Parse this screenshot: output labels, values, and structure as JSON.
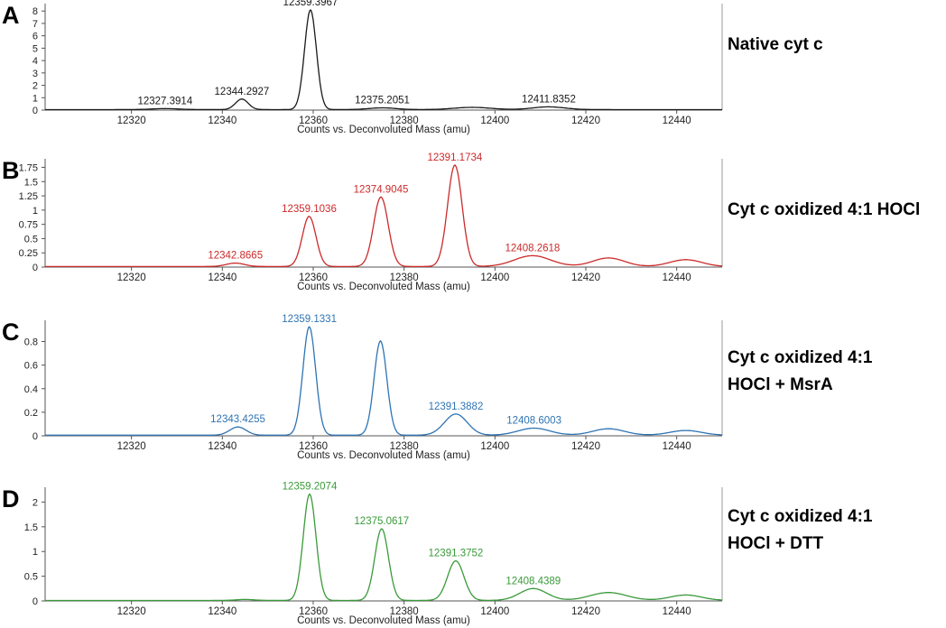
{
  "chart_data": [
    {
      "type": "line",
      "panel": "A",
      "caption": [
        "Native cyt c"
      ],
      "xlabel": "Counts vs. Deconvoluted Mass (amu)",
      "xlim": [
        12301,
        12450
      ],
      "ylim": [
        0,
        8.6
      ],
      "xticks": [
        12320,
        12340,
        12360,
        12380,
        12400,
        12420,
        12440
      ],
      "yticks": [
        0,
        1,
        2,
        3,
        4,
        5,
        6,
        7,
        8
      ],
      "color": "#1a1a1a",
      "baseline": 0.04,
      "peaks": [
        {
          "x": 12327.3914,
          "y": 0.08,
          "width": 3.0
        },
        {
          "x": 12344.2927,
          "y": 0.85,
          "width": 1.4
        },
        {
          "x": 12359.3967,
          "y": 8.05,
          "width": 1.3
        },
        {
          "x": 12375.2051,
          "y": 0.14,
          "width": 3.0
        },
        {
          "x": 12395.0,
          "y": 0.18,
          "width": 4.0
        },
        {
          "x": 12411.8352,
          "y": 0.22,
          "width": 3.5
        }
      ],
      "labels": [
        {
          "x": 12327.3914,
          "y": 0.08,
          "text": "12327.3914"
        },
        {
          "x": 12344.2927,
          "y": 0.85,
          "text": "12344.2927"
        },
        {
          "x": 12359.3967,
          "y": 8.05,
          "text": "12359.3967"
        },
        {
          "x": 12375.2051,
          "y": 0.14,
          "text": "12375.2051"
        },
        {
          "x": 12411.8352,
          "y": 0.22,
          "text": "12411.8352"
        }
      ]
    },
    {
      "type": "line",
      "panel": "B",
      "caption": [
        "Cyt c oxidized 4:1 HOCl"
      ],
      "xlabel": "Counts vs. Deconvoluted Mass (amu)",
      "xlim": [
        12301,
        12450
      ],
      "ylim": [
        0,
        1.9
      ],
      "xticks": [
        12320,
        12340,
        12360,
        12380,
        12400,
        12420,
        12440
      ],
      "yticks": [
        0,
        0.25,
        0.5,
        0.75,
        1,
        1.25,
        1.5,
        1.75
      ],
      "color": "#cc2a2a",
      "baseline": 0.01,
      "peaks": [
        {
          "x": 12342.8665,
          "y": 0.06,
          "width": 2.0
        },
        {
          "x": 12359.1036,
          "y": 0.88,
          "width": 1.5
        },
        {
          "x": 12374.9045,
          "y": 1.22,
          "width": 1.6
        },
        {
          "x": 12391.1734,
          "y": 1.78,
          "width": 1.6
        },
        {
          "x": 12408.2618,
          "y": 0.19,
          "width": 4.0
        },
        {
          "x": 12425.0,
          "y": 0.15,
          "width": 3.5
        },
        {
          "x": 12442.0,
          "y": 0.12,
          "width": 3.5
        }
      ],
      "labels": [
        {
          "x": 12342.8665,
          "y": 0.06,
          "text": "12342.8665"
        },
        {
          "x": 12359.1036,
          "y": 0.88,
          "text": "12359.1036"
        },
        {
          "x": 12374.9045,
          "y": 1.22,
          "text": "12374.9045"
        },
        {
          "x": 12391.1734,
          "y": 1.78,
          "text": "12391.1734"
        },
        {
          "x": 12408.2618,
          "y": 0.19,
          "text": "12408.2618"
        }
      ]
    },
    {
      "type": "line",
      "panel": "C",
      "caption": [
        "Cyt c oxidized 4:1",
        "HOCl + MsrA"
      ],
      "xlabel": "Counts vs. Deconvoluted Mass (amu)",
      "xlim": [
        12301,
        12450
      ],
      "ylim": [
        0,
        0.98
      ],
      "xticks": [
        12320,
        12340,
        12360,
        12380,
        12400,
        12420,
        12440
      ],
      "yticks": [
        0,
        0.2,
        0.4,
        0.6,
        0.8
      ],
      "color": "#2f74b3",
      "baseline": 0.005,
      "peaks": [
        {
          "x": 12343.4255,
          "y": 0.07,
          "width": 1.8
        },
        {
          "x": 12359.1331,
          "y": 0.92,
          "width": 1.4
        },
        {
          "x": 12374.8,
          "y": 0.8,
          "width": 1.4
        },
        {
          "x": 12391.3882,
          "y": 0.18,
          "width": 2.5
        },
        {
          "x": 12408.6003,
          "y": 0.06,
          "width": 3.5
        },
        {
          "x": 12425.0,
          "y": 0.055,
          "width": 3.5
        },
        {
          "x": 12442.0,
          "y": 0.04,
          "width": 3.5
        }
      ],
      "labels": [
        {
          "x": 12343.4255,
          "y": 0.07,
          "text": "12343.4255"
        },
        {
          "x": 12359.1331,
          "y": 0.92,
          "text": "12359.1331"
        },
        {
          "x": 12391.3882,
          "y": 0.18,
          "text": "12391.3882"
        },
        {
          "x": 12408.6003,
          "y": 0.06,
          "text": "12408.6003"
        }
      ]
    },
    {
      "type": "line",
      "panel": "D",
      "caption": [
        "Cyt c oxidized 4:1",
        "HOCl + DTT"
      ],
      "xlabel": "Counts vs. Deconvoluted Mass (amu)",
      "xlim": [
        12301,
        12450
      ],
      "ylim": [
        0,
        2.3
      ],
      "xticks": [
        12320,
        12340,
        12360,
        12380,
        12400,
        12420,
        12440
      ],
      "yticks": [
        0,
        0.5,
        1,
        1.5,
        2
      ],
      "color": "#3a9a3a",
      "baseline": 0.01,
      "peaks": [
        {
          "x": 12345.0,
          "y": 0.02,
          "width": 2.0
        },
        {
          "x": 12359.2074,
          "y": 2.15,
          "width": 1.4
        },
        {
          "x": 12375.0617,
          "y": 1.45,
          "width": 1.5
        },
        {
          "x": 12391.3752,
          "y": 0.8,
          "width": 1.8
        },
        {
          "x": 12408.4389,
          "y": 0.24,
          "width": 3.0
        },
        {
          "x": 12425.0,
          "y": 0.16,
          "width": 4.0
        },
        {
          "x": 12442.0,
          "y": 0.11,
          "width": 3.5
        }
      ],
      "labels": [
        {
          "x": 12359.2074,
          "y": 2.15,
          "text": "12359.2074"
        },
        {
          "x": 12375.0617,
          "y": 1.45,
          "text": "12375.0617"
        },
        {
          "x": 12391.3752,
          "y": 0.8,
          "text": "12391.3752"
        },
        {
          "x": 12408.4389,
          "y": 0.24,
          "text": "12408.4389"
        }
      ]
    }
  ]
}
